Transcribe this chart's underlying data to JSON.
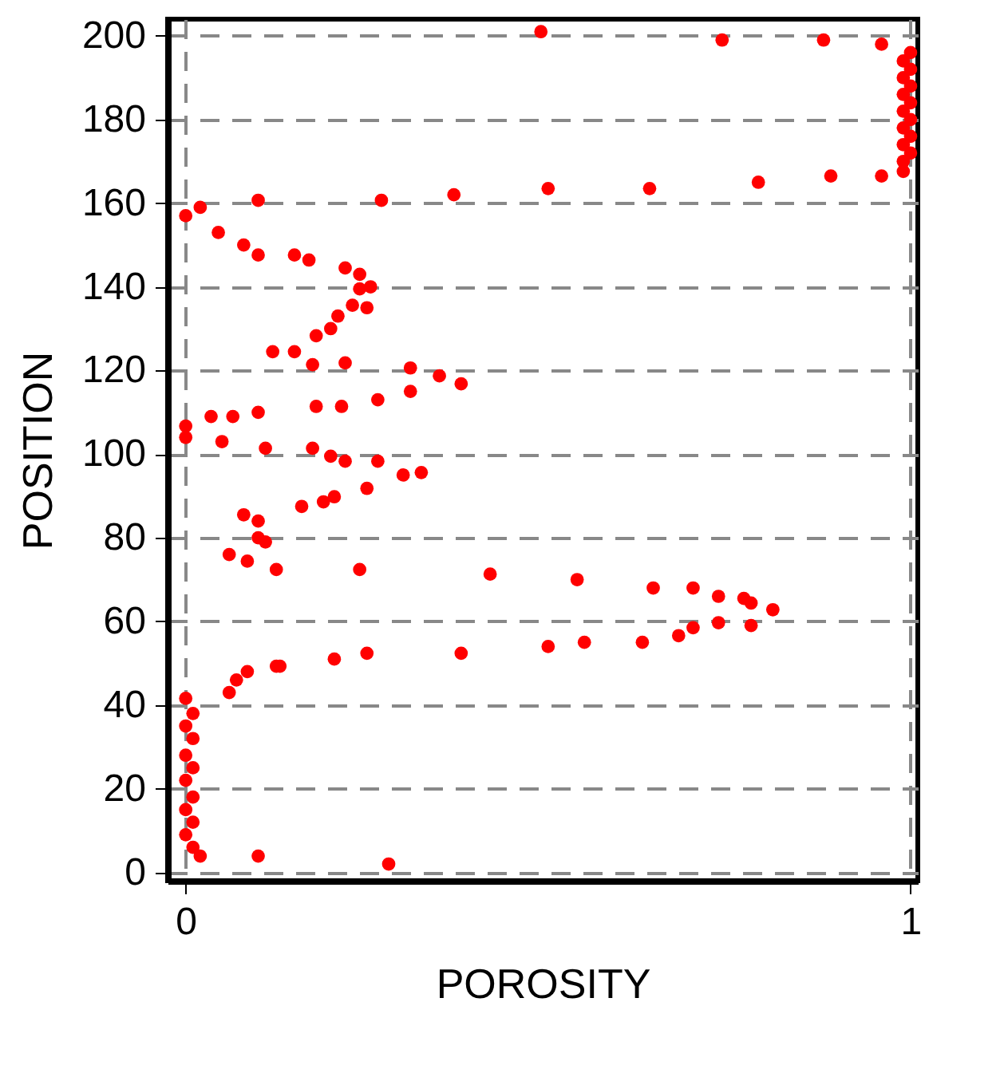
{
  "chart_data": {
    "type": "scatter",
    "xlabel": "POROSITY",
    "ylabel": "POSITION",
    "xlim": [
      -0.025,
      1.01
    ],
    "ylim": [
      -2,
      204
    ],
    "xticks": [
      0,
      1
    ],
    "yticks": [
      0,
      20,
      40,
      60,
      80,
      100,
      120,
      140,
      160,
      180,
      200
    ],
    "grid": true,
    "marker": "circle",
    "series": [
      {
        "color": "#ff0000",
        "x": [
          0.49,
          0.74,
          0.88,
          0.96,
          1.0,
          0.99,
          1.0,
          0.99,
          1.0,
          0.99,
          1.0,
          0.99,
          1.0,
          0.99,
          1.0,
          0.99,
          1.0,
          0.99,
          0.1,
          0.27,
          0.37,
          0.5,
          0.64,
          0.79,
          0.89,
          0.96,
          0.99,
          0.0,
          0.02,
          0.045,
          0.08,
          0.1,
          0.15,
          0.17,
          0.22,
          0.24,
          0.255,
          0.24,
          0.23,
          0.21,
          0.2,
          0.18,
          0.12,
          0.15,
          0.175,
          0.22,
          0.25,
          0.31,
          0.31,
          0.35,
          0.38,
          0.265,
          0.18,
          0.215,
          0.0,
          0.0,
          0.035,
          0.065,
          0.1,
          0.05,
          0.11,
          0.175,
          0.2,
          0.22,
          0.265,
          0.3,
          0.325,
          0.25,
          0.205,
          0.19,
          0.16,
          0.08,
          0.1,
          0.1,
          0.11,
          0.06,
          0.085,
          0.125,
          0.24,
          0.42,
          0.54,
          0.645,
          0.7,
          0.735,
          0.77,
          0.78,
          0.81,
          0.78,
          0.735,
          0.7,
          0.68,
          0.63,
          0.55,
          0.5,
          0.38,
          0.25,
          0.205,
          0.13,
          0.125,
          0.085,
          0.07,
          0.06,
          0.0,
          0.01,
          0.0,
          0.01,
          0.0,
          0.01,
          0.0,
          0.01,
          0.0,
          0.01,
          0.0,
          0.01,
          0.02,
          0.1,
          0.28
        ],
        "values": [
          201,
          199,
          199,
          198,
          196,
          194,
          192,
          190,
          188,
          186,
          184,
          182,
          180,
          178,
          176,
          174,
          172,
          170,
          160.7,
          160.7,
          162,
          163.5,
          163.5,
          165,
          166.5,
          166.5,
          167.6,
          157,
          159,
          153,
          150,
          147.6,
          147.6,
          146.4,
          144.5,
          143,
          140,
          139.5,
          135.6,
          133,
          130,
          128.3,
          124.5,
          124.5,
          121.4,
          121.8,
          135,
          120.6,
          115,
          118.7,
          116.8,
          113,
          111.4,
          111.4,
          106.7,
          104,
          109,
          109,
          110,
          103,
          101.4,
          101.4,
          99.5,
          98.3,
          98.3,
          95,
          95.6,
          91.8,
          89.8,
          88.6,
          87.5,
          85.5,
          84,
          80,
          79,
          76,
          74.4,
          72.4,
          72.4,
          71.3,
          70,
          68,
          68,
          66,
          65.5,
          64.4,
          62.8,
          59,
          59.7,
          58.5,
          56.6,
          55,
          55,
          54,
          52.4,
          52.4,
          51,
          49.3,
          49.3,
          48,
          46,
          43,
          41.6,
          38,
          35,
          32,
          28,
          25,
          22,
          18,
          15,
          12,
          9,
          6,
          3.9,
          3.9,
          2
        ]
      }
    ]
  }
}
